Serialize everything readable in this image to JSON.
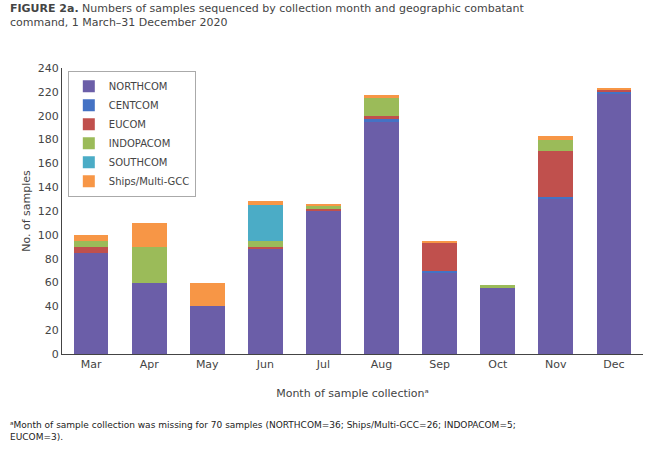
{
  "chart_data": {
    "type": "bar",
    "stacked": true,
    "title": "FIGURE 2a.",
    "subtitle": "Numbers of samples sequenced by collection month and geographic combatant\ncommand, 1 March–31 December 2020",
    "x_label": "Month of sample collectionᵃ",
    "y_label": "No. of samples",
    "categories": [
      "Mar",
      "Apr",
      "May",
      "Jun",
      "Jul",
      "Aug",
      "Sep",
      "Oct",
      "Nov",
      "Dec"
    ],
    "series": [
      {
        "name": "NORTHCOM",
        "color": "#6b5ea8",
        "values": [
          85,
          60,
          40,
          88,
          120,
          195,
          68,
          55,
          130,
          218
        ]
      },
      {
        "name": "CENTCOM",
        "color": "#4472c4",
        "values": [
          0,
          0,
          0,
          0,
          0,
          2,
          2,
          0,
          2,
          2
        ]
      },
      {
        "name": "EUCOM",
        "color": "#c0504d",
        "values": [
          5,
          0,
          0,
          2,
          2,
          3,
          23,
          0,
          38,
          2
        ]
      },
      {
        "name": "INDOPACOM",
        "color": "#9bbb59",
        "values": [
          5,
          30,
          0,
          5,
          2,
          15,
          0,
          3,
          10,
          0
        ]
      },
      {
        "name": "SOUTHCOM",
        "color": "#4bacc6",
        "values": [
          0,
          0,
          0,
          30,
          0,
          0,
          0,
          0,
          0,
          0
        ]
      },
      {
        "name": "Ships/Multi-GCC",
        "color": "#f79646",
        "values": [
          5,
          20,
          20,
          3,
          2,
          2,
          2,
          0,
          3,
          1
        ]
      }
    ],
    "ylim": [
      0,
      240
    ],
    "yticks": [
      0,
      20,
      40,
      60,
      80,
      100,
      120,
      140,
      160,
      180,
      200,
      220,
      240
    ],
    "grid": false,
    "legend": "upper left",
    "annotations": [
      "ᵃMonth of sample collection was missing for 70 samples (NORTHCOM=36; Ships/Multi-GCC=26; INDOPACOM=5;\nEUCOM=3)."
    ]
  }
}
